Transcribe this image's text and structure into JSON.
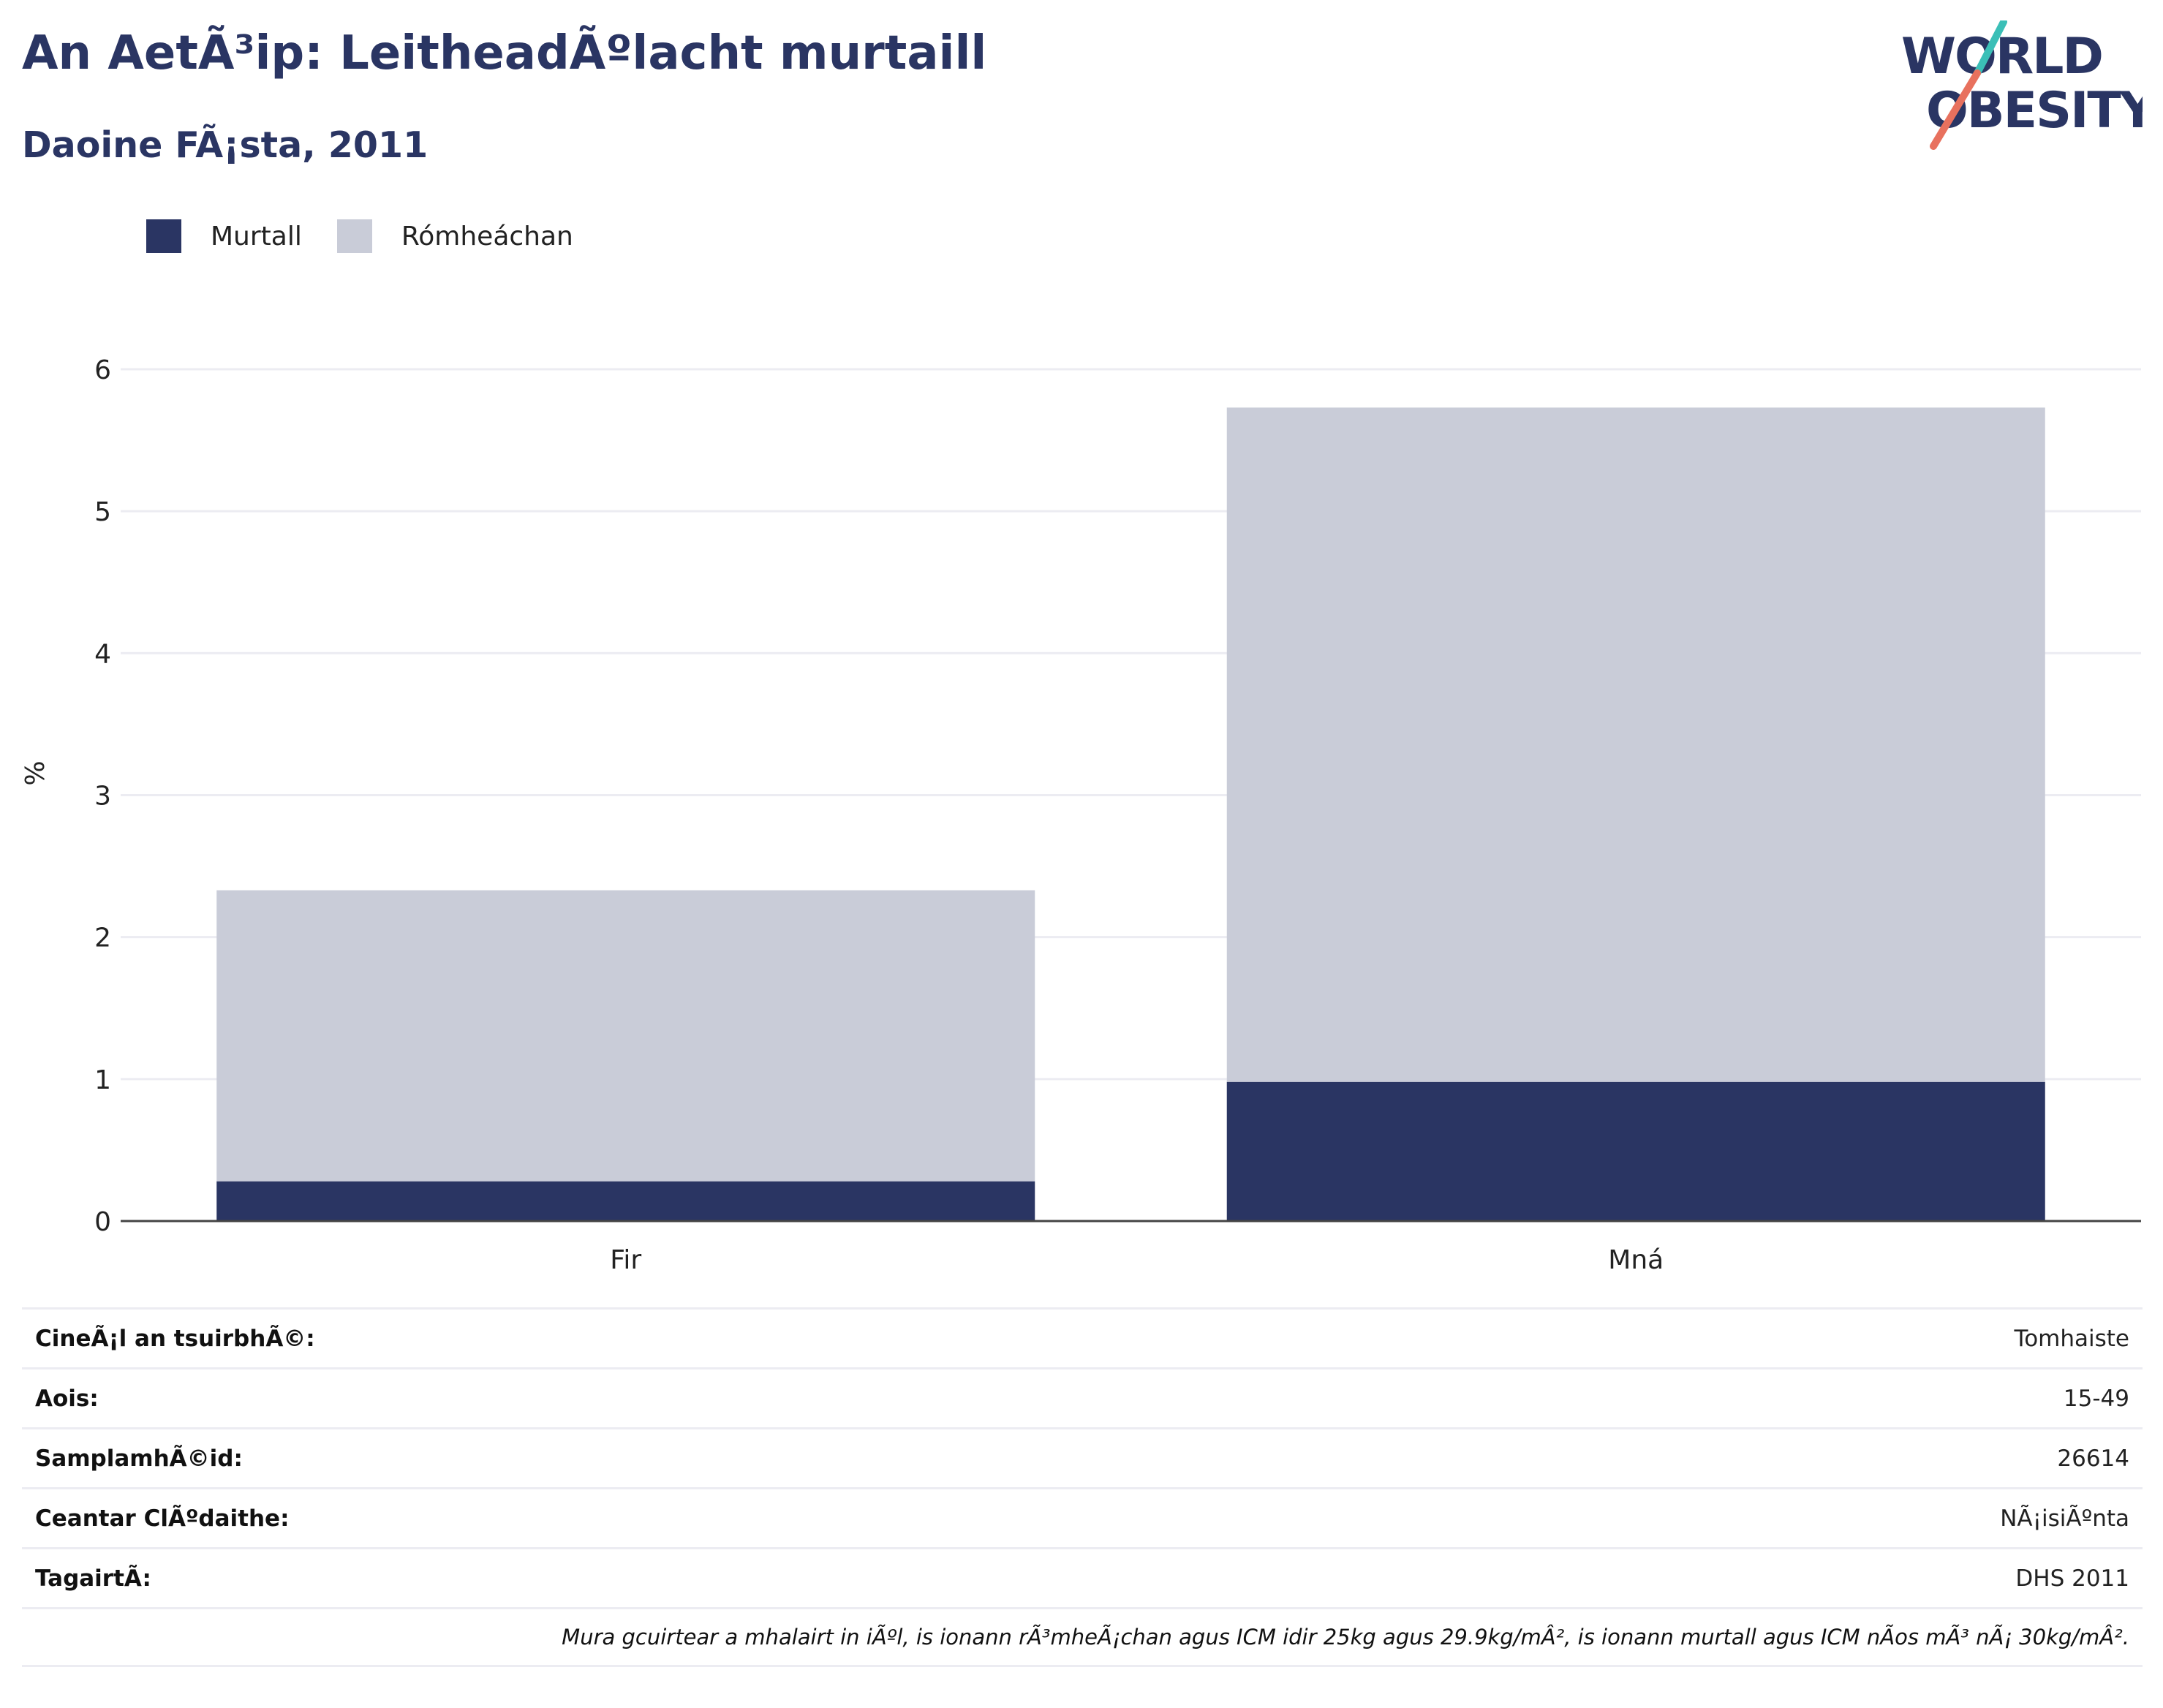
{
  "header": {
    "title": "An AetÃ³ip: LeitheadÃºlacht murtaill",
    "subtitle": "Daoine FÃ¡sta, 2011"
  },
  "logo": {
    "line1": "WORLD",
    "line2": "OBESITY",
    "colors": {
      "text": "#2a3563",
      "slash_top": "#3bbfb7",
      "slash_bottom": "#e8715e"
    }
  },
  "legend": [
    {
      "label": "Murtall",
      "color": "#2a3563"
    },
    {
      "label": "Rómheáchan",
      "color": "#c9ccd8"
    }
  ],
  "chart_data": {
    "type": "bar",
    "stacked": true,
    "categories": [
      "Fir",
      "Mná"
    ],
    "series": [
      {
        "name": "Murtall",
        "color": "#2a3563",
        "values": [
          0.28,
          0.98
        ]
      },
      {
        "name": "Rómheáchan",
        "color": "#c9ccd8",
        "values": [
          2.05,
          4.75
        ]
      }
    ],
    "ylabel": "%",
    "ylim": [
      0,
      6
    ],
    "yticks": [
      "0",
      "1",
      "2",
      "3",
      "4",
      "5",
      "6"
    ],
    "grid": true,
    "legend_position": "top-left"
  },
  "info": {
    "rows": [
      {
        "label": "CineÃ¡l an tsuirbhÃ©:",
        "value": "Tomhaiste"
      },
      {
        "label": "Aois:",
        "value": "15-49"
      },
      {
        "label": "SamplamhÃ©id:",
        "value": "26614"
      },
      {
        "label": "Ceantar ClÃºdaithe:",
        "value": "NÃ¡isiÃºnta"
      },
      {
        "label": "TagairtÃ:",
        "value": "DHS 2011"
      }
    ],
    "note": "Mura gcuirtear a mhalairt in iÃºl, is ionann rÃ³mheÃ¡chan agus ICM idir 25kg agus 29.9kg/mÂ², is ionann murtall agus ICM nÃos mÃ³ nÃ¡ 30kg/mÂ²."
  }
}
